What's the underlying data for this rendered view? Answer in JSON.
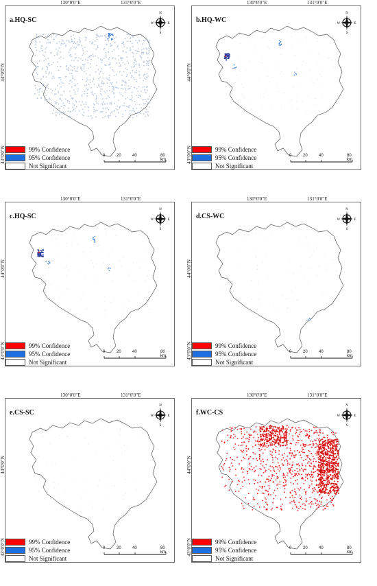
{
  "coords": {
    "lon1": "130°0'0\"E",
    "lon2": "131°0'0\"E",
    "lat1": "44°0'0\"N",
    "lat2": "43°0'0\"N"
  },
  "legend": {
    "items": [
      {
        "label": "99% Confidence",
        "color": "#ff0000"
      },
      {
        "label": "95% Confidence",
        "color": "#1f6fe0"
      },
      {
        "label": "Not Significant",
        "color": "#ffffff"
      }
    ]
  },
  "scale": {
    "ticks": [
      "0",
      "20",
      "40",
      "80 km"
    ]
  },
  "north": {
    "n": "N",
    "s": "S",
    "e": "E",
    "w": "W",
    "icon": "north-arrow-icon"
  },
  "panels": [
    {
      "title": "a.HQ-SC",
      "fill": "blue-dense"
    },
    {
      "title": "b.HQ-WC",
      "fill": "blue-spots"
    },
    {
      "title": "c.HQ-SC",
      "fill": "blue-spots"
    },
    {
      "title": "d.CS-WC",
      "fill": "sparse"
    },
    {
      "title": "e.CS-SC",
      "fill": "sparse"
    },
    {
      "title": "f.WC-CS",
      "fill": "red-dense"
    }
  ]
}
